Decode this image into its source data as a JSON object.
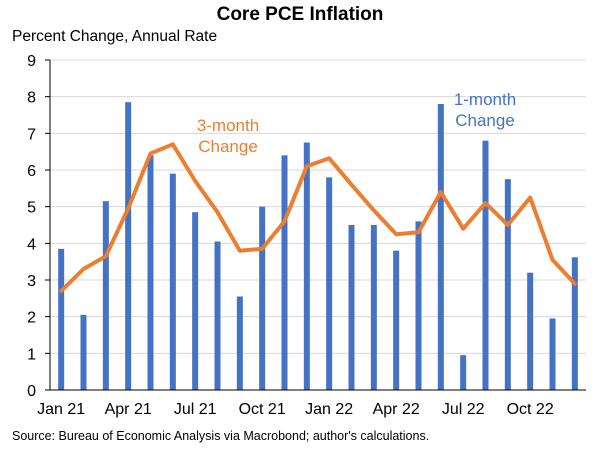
{
  "chart_data": {
    "type": "bar+line",
    "title": "Core PCE Inflation",
    "ylabel": "Percent Change, Annual Rate",
    "source": "Source: Bureau of Economic Analysis via Macrobond; author's calculations.",
    "ylim": [
      0,
      9
    ],
    "yticks": [
      0,
      1,
      2,
      3,
      4,
      5,
      6,
      7,
      8,
      9
    ],
    "x_tick_labels": [
      "Jan 21",
      "Apr 21",
      "Jul 21",
      "Oct 21",
      "Jan 22",
      "Apr 22",
      "Jul 22",
      "Oct 22"
    ],
    "x_tick_indices": [
      0,
      3,
      6,
      9,
      12,
      15,
      18,
      21
    ],
    "months": [
      "Jan 21",
      "Feb 21",
      "Mar 21",
      "Apr 21",
      "May 21",
      "Jun 21",
      "Jul 21",
      "Aug 21",
      "Sep 21",
      "Oct 21",
      "Nov 21",
      "Dec 21",
      "Jan 22",
      "Feb 22",
      "Mar 22",
      "Apr 22",
      "May 22",
      "Jun 22",
      "Jul 22",
      "Aug 22",
      "Sep 22",
      "Oct 22",
      "Nov 22",
      "Dec 22"
    ],
    "series": [
      {
        "name": "1-month Change",
        "kind": "bar",
        "color": "#4472C4",
        "values": [
          3.85,
          2.05,
          5.15,
          7.85,
          6.4,
          5.9,
          4.85,
          4.05,
          2.55,
          5.0,
          6.4,
          6.75,
          5.8,
          4.5,
          4.5,
          3.8,
          4.6,
          7.8,
          0.95,
          6.8,
          5.75,
          3.2,
          1.95,
          3.62
        ]
      },
      {
        "name": "3-month Change",
        "kind": "line",
        "color": "#ED7D31",
        "values": [
          2.7,
          3.3,
          3.65,
          4.95,
          6.45,
          6.7,
          5.7,
          4.85,
          3.8,
          3.85,
          4.6,
          6.1,
          6.32,
          5.6,
          4.9,
          4.25,
          4.3,
          5.4,
          4.4,
          5.1,
          4.5,
          5.25,
          3.55,
          2.9
        ]
      }
    ],
    "annotations": {
      "bars_label_line1": "1-month",
      "bars_label_line2": "Change",
      "line_label_line1": "3-month",
      "line_label_line2": "Change"
    },
    "grid": "horizontal"
  }
}
